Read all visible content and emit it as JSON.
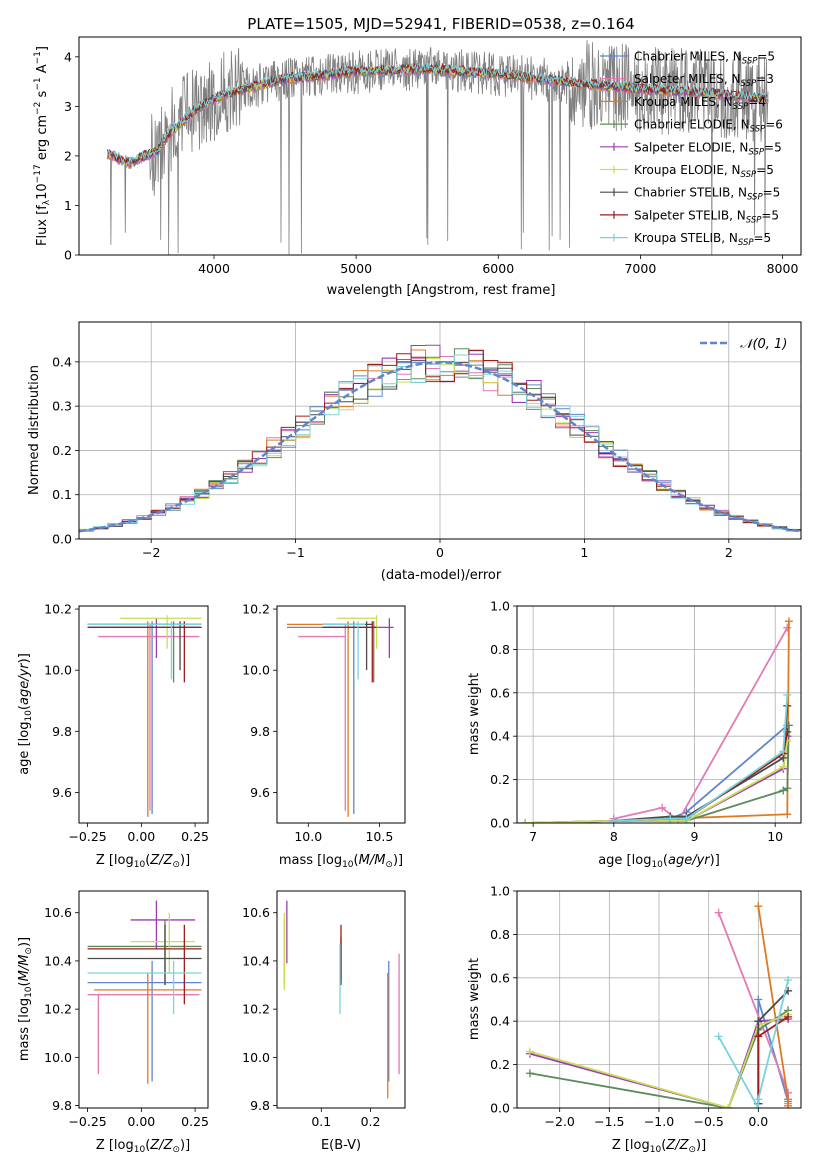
{
  "title": "PLATE=1505, MJD=52941, FIBERID=0538, z=0.164",
  "colors": {
    "Chabrier MILES": "#5f86cc",
    "Salpeter MILES": "#e379b5",
    "Kroupa MILES": "#e07a22",
    "Chabrier ELODIE": "#5b8a5b",
    "Salpeter ELODIE": "#9a3fb4",
    "Kroupa ELODIE": "#c9dd55",
    "Chabrier STELIB": "#4a4a4a",
    "Salpeter STELIB": "#a01c1c",
    "Kroupa STELIB": "#79d3dc",
    "data": "#808080",
    "gaussian": "#5f86cc"
  },
  "legend_spectrum": [
    {
      "key": "Chabrier MILES",
      "text": "Chabrier MILES, N",
      "sub": "SSP",
      "tail": "=5"
    },
    {
      "key": "Salpeter MILES",
      "text": "Salpeter MILES, N",
      "sub": "SSP",
      "tail": "=3"
    },
    {
      "key": "Kroupa MILES",
      "text": "Kroupa MILES, N",
      "sub": "SSP",
      "tail": "=4"
    },
    {
      "key": "Chabrier ELODIE",
      "text": "Chabrier ELODIE, N",
      "sub": "SSP",
      "tail": "=6"
    },
    {
      "key": "Salpeter ELODIE",
      "text": "Salpeter ELODIE, N",
      "sub": "SSP",
      "tail": "=5"
    },
    {
      "key": "Kroupa ELODIE",
      "text": "Kroupa ELODIE, N",
      "sub": "SSP",
      "tail": "=5"
    },
    {
      "key": "Chabrier STELIB",
      "text": "Chabrier STELIB, N",
      "sub": "SSP",
      "tail": "=5"
    },
    {
      "key": "Salpeter STELIB",
      "text": "Salpeter STELIB, N",
      "sub": "SSP",
      "tail": "=5"
    },
    {
      "key": "Kroupa STELIB",
      "text": "Kroupa STELIB, N",
      "sub": "SSP",
      "tail": "=5"
    }
  ],
  "legend_hist": "𝒩(0, 1)",
  "chart_data": [
    {
      "id": "spectrum",
      "type": "line",
      "xlabel": "wavelength [Angstrom, rest frame]",
      "ylabel": "Flux [f_λ10^-17 erg cm^-2 s^-1 A^-1]",
      "xlim": [
        3050,
        8130
      ],
      "ylim": [
        0,
        4.4
      ],
      "xticks": [
        4000,
        5000,
        6000,
        7000,
        8000
      ],
      "yticks": [
        0,
        1,
        2,
        3,
        4
      ],
      "model_continuum": {
        "x": [
          3250,
          3400,
          3600,
          3700,
          3800,
          3900,
          4000,
          4200,
          4500,
          5000,
          5500,
          6000,
          6300,
          6600,
          7000,
          7500,
          7900
        ],
        "y": [
          2.05,
          1.85,
          2.1,
          2.5,
          2.75,
          3.0,
          3.15,
          3.35,
          3.55,
          3.7,
          3.75,
          3.65,
          3.55,
          3.45,
          3.35,
          3.25,
          3.15
        ]
      }
    },
    {
      "id": "residuals",
      "type": "histogram",
      "xlabel": "(data-model)/error",
      "ylabel": "Normed distribution",
      "xlim": [
        -2.5,
        2.5
      ],
      "ylim": [
        0,
        0.49
      ],
      "xticks": [
        -2,
        -1,
        0,
        1,
        2
      ],
      "yticks": [
        0,
        0.1,
        0.2,
        0.3,
        0.4
      ],
      "grid": true,
      "legend_placement": "upper right",
      "gaussian": {
        "mu": 0,
        "sigma": 1
      }
    },
    {
      "id": "age_vs_Z",
      "type": "scatter",
      "xlabel": "Z [log10(Z/Z⊙)]",
      "ylabel": "age [log10(age/yr)]",
      "xlim": [
        -0.29,
        0.31
      ],
      "ylim": [
        9.5,
        10.21
      ],
      "xticks": [
        -0.25,
        0,
        0.25
      ],
      "yticks": [
        9.6,
        9.8,
        10.0,
        10.2
      ],
      "points": [
        {
          "key": "Chabrier MILES",
          "x": 0.05,
          "y": 10.14,
          "xlo": -0.25,
          "xhi": 0.28,
          "ylo": 9.53,
          "yhi": 10.16
        },
        {
          "key": "Salpeter MILES",
          "x": 0.04,
          "y": 10.11,
          "xlo": -0.2,
          "xhi": 0.27,
          "ylo": 9.54,
          "yhi": 10.15
        },
        {
          "key": "Kroupa MILES",
          "x": 0.03,
          "y": 10.15,
          "xlo": -0.25,
          "xhi": 0.28,
          "ylo": 9.52,
          "yhi": 10.16
        },
        {
          "key": "Chabrier ELODIE",
          "x": 0.15,
          "y": 10.14,
          "xlo": -0.25,
          "xhi": 0.28,
          "ylo": 9.96,
          "yhi": 10.16
        },
        {
          "key": "Salpeter ELODIE",
          "x": 0.07,
          "y": 10.14,
          "xlo": -0.25,
          "xhi": 0.28,
          "ylo": 10.04,
          "yhi": 10.17
        },
        {
          "key": "Kroupa ELODIE",
          "x": 0.12,
          "y": 10.17,
          "xlo": -0.1,
          "xhi": 0.28,
          "ylo": 10.07,
          "yhi": 10.18
        },
        {
          "key": "Chabrier STELIB",
          "x": 0.18,
          "y": 10.15,
          "xlo": -0.25,
          "xhi": 0.28,
          "ylo": 10.0,
          "yhi": 10.16
        },
        {
          "key": "Salpeter STELIB",
          "x": 0.2,
          "y": 10.14,
          "xlo": -0.25,
          "xhi": 0.28,
          "ylo": 9.96,
          "yhi": 10.16
        },
        {
          "key": "Kroupa STELIB",
          "x": 0.14,
          "y": 10.15,
          "xlo": -0.25,
          "xhi": 0.28,
          "ylo": 9.97,
          "yhi": 10.16
        }
      ]
    },
    {
      "id": "age_vs_mass",
      "type": "scatter",
      "xlabel": "mass [log10(M/M⊙)]",
      "ylabel": "",
      "xlim": [
        9.78,
        10.68
      ],
      "ylim": [
        9.5,
        10.21
      ],
      "xticks": [
        10.0,
        10.5
      ],
      "yticks": [
        9.6,
        9.8,
        10.0,
        10.2
      ],
      "points": [
        {
          "key": "Chabrier MILES",
          "x": 10.32,
          "y": 10.14,
          "xlo": 9.85,
          "xhi": 10.4,
          "ylo": 9.53,
          "yhi": 10.16
        },
        {
          "key": "Salpeter MILES",
          "x": 10.26,
          "y": 10.11,
          "xlo": 9.93,
          "xhi": 10.26,
          "ylo": 9.54,
          "yhi": 10.15
        },
        {
          "key": "Kroupa MILES",
          "x": 10.28,
          "y": 10.15,
          "xlo": 9.85,
          "xhi": 10.28,
          "ylo": 9.52,
          "yhi": 10.16
        },
        {
          "key": "Chabrier ELODIE",
          "x": 10.46,
          "y": 10.14,
          "xlo": 10.1,
          "xhi": 10.46,
          "ylo": 9.96,
          "yhi": 10.16
        },
        {
          "key": "Salpeter ELODIE",
          "x": 10.57,
          "y": 10.14,
          "xlo": 10.15,
          "xhi": 10.6,
          "ylo": 10.04,
          "yhi": 10.17
        },
        {
          "key": "Kroupa ELODIE",
          "x": 10.48,
          "y": 10.17,
          "xlo": 10.2,
          "xhi": 10.48,
          "ylo": 10.07,
          "yhi": 10.18
        },
        {
          "key": "Chabrier STELIB",
          "x": 10.41,
          "y": 10.15,
          "xlo": 10.1,
          "xhi": 10.45,
          "ylo": 10.0,
          "yhi": 10.16
        },
        {
          "key": "Salpeter STELIB",
          "x": 10.45,
          "y": 10.14,
          "xlo": 10.1,
          "xhi": 10.48,
          "ylo": 9.96,
          "yhi": 10.16
        },
        {
          "key": "Kroupa STELIB",
          "x": 10.35,
          "y": 10.15,
          "xlo": 10.1,
          "xhi": 10.4,
          "ylo": 9.97,
          "yhi": 10.16
        }
      ]
    },
    {
      "id": "weight_vs_age",
      "type": "line",
      "xlabel": "age [log10(age/yr)]",
      "ylabel": "mass weight",
      "xlim": [
        6.8,
        10.32
      ],
      "ylim": [
        0,
        1.0
      ],
      "xticks": [
        7,
        8,
        9,
        10
      ],
      "yticks": [
        0.0,
        0.2,
        0.4,
        0.6,
        0.8,
        1.0
      ],
      "grid": true,
      "series": [
        {
          "key": "Chabrier MILES",
          "x": [
            8.0,
            8.7,
            8.9,
            10.15
          ],
          "y": [
            0.01,
            0.02,
            0.05,
            0.45
          ]
        },
        {
          "key": "Salpeter MILES",
          "x": [
            8.0,
            8.6,
            8.8,
            10.15
          ],
          "y": [
            0.02,
            0.07,
            0.01,
            0.9
          ]
        },
        {
          "key": "Kroupa MILES",
          "x": [
            8.0,
            8.7,
            10.15,
            10.17
          ],
          "y": [
            0.01,
            0.02,
            0.04,
            0.93
          ]
        },
        {
          "key": "Chabrier ELODIE",
          "x": [
            6.9,
            8.0,
            8.9,
            10.1,
            10.15,
            10.17
          ],
          "y": [
            0.0,
            0.01,
            0.01,
            0.15,
            0.16,
            0.45
          ]
        },
        {
          "key": "Salpeter ELODIE",
          "x": [
            6.9,
            8.0,
            8.9,
            10.1,
            10.15
          ],
          "y": [
            0.0,
            0.01,
            0.01,
            0.25,
            0.4
          ]
        },
        {
          "key": "Kroupa ELODIE",
          "x": [
            6.9,
            8.0,
            8.9,
            10.1,
            10.15
          ],
          "y": [
            0.0,
            0.01,
            0.01,
            0.26,
            0.38
          ]
        },
        {
          "key": "Chabrier STELIB",
          "x": [
            8.0,
            8.7,
            8.9,
            10.1,
            10.15
          ],
          "y": [
            0.01,
            0.03,
            0.03,
            0.3,
            0.54
          ]
        },
        {
          "key": "Salpeter STELIB",
          "x": [
            8.0,
            8.7,
            8.9,
            10.1,
            10.15
          ],
          "y": [
            0.01,
            0.02,
            0.02,
            0.32,
            0.42
          ]
        },
        {
          "key": "Kroupa STELIB",
          "x": [
            8.0,
            8.7,
            8.9,
            10.1,
            10.15
          ],
          "y": [
            0.01,
            0.02,
            0.02,
            0.33,
            0.59
          ]
        }
      ]
    },
    {
      "id": "mass_vs_Z",
      "type": "scatter",
      "xlabel": "Z [log10(Z/Z⊙)]",
      "ylabel": "mass [log10(M/M⊙)]",
      "xlim": [
        -0.29,
        0.31
      ],
      "ylim": [
        9.79,
        10.69
      ],
      "xticks": [
        -0.25,
        0,
        0.25
      ],
      "yticks": [
        9.8,
        10.0,
        10.2,
        10.4,
        10.6
      ],
      "points": [
        {
          "key": "Chabrier MILES",
          "x": 0.05,
          "y": 10.31,
          "xlo": -0.25,
          "xhi": 0.28,
          "ylo": 9.9,
          "yhi": 10.4
        },
        {
          "key": "Salpeter MILES",
          "x": -0.2,
          "y": 10.26,
          "xlo": -0.25,
          "xhi": 0.27,
          "ylo": 9.93,
          "yhi": 10.26
        },
        {
          "key": "Kroupa MILES",
          "x": 0.03,
          "y": 10.28,
          "xlo": -0.22,
          "xhi": 0.28,
          "ylo": 9.89,
          "yhi": 10.35
        },
        {
          "key": "Chabrier ELODIE",
          "x": 0.11,
          "y": 10.46,
          "xlo": -0.25,
          "xhi": 0.28,
          "ylo": 10.3,
          "yhi": 10.57
        },
        {
          "key": "Salpeter ELODIE",
          "x": 0.07,
          "y": 10.57,
          "xlo": -0.05,
          "xhi": 0.25,
          "ylo": 10.45,
          "yhi": 10.65
        },
        {
          "key": "Kroupa ELODIE",
          "x": 0.13,
          "y": 10.48,
          "xlo": -0.05,
          "xhi": 0.25,
          "ylo": 10.35,
          "yhi": 10.6
        },
        {
          "key": "Chabrier STELIB",
          "x": 0.11,
          "y": 10.41,
          "xlo": -0.25,
          "xhi": 0.28,
          "ylo": 10.3,
          "yhi": 10.55
        },
        {
          "key": "Salpeter STELIB",
          "x": 0.2,
          "y": 10.45,
          "xlo": -0.25,
          "xhi": 0.28,
          "ylo": 10.22,
          "yhi": 10.55
        },
        {
          "key": "Kroupa STELIB",
          "x": 0.15,
          "y": 10.35,
          "xlo": -0.25,
          "xhi": 0.28,
          "ylo": 10.18,
          "yhi": 10.4
        }
      ]
    },
    {
      "id": "mass_vs_ebv",
      "type": "scatter",
      "xlabel": "E(B-V)",
      "ylabel": "",
      "xlim": [
        0.01,
        0.27
      ],
      "ylim": [
        9.79,
        10.69
      ],
      "xticks": [
        0.1,
        0.2
      ],
      "yticks": [
        9.8,
        10.0,
        10.2,
        10.4,
        10.6
      ],
      "points": [
        {
          "key": "Chabrier MILES",
          "x": 0.237,
          "y": 10.31,
          "ylo": 9.9,
          "yhi": 10.4
        },
        {
          "key": "Salpeter MILES",
          "x": 0.258,
          "y": 10.26,
          "ylo": 9.93,
          "yhi": 10.43
        },
        {
          "key": "Kroupa MILES",
          "x": 0.235,
          "y": 10.28,
          "ylo": 9.83,
          "yhi": 10.35
        },
        {
          "key": "Chabrier ELODIE",
          "x": 0.025,
          "y": 10.46,
          "ylo": 10.3,
          "yhi": 10.57
        },
        {
          "key": "Salpeter ELODIE",
          "x": 0.03,
          "y": 10.57,
          "ylo": 10.39,
          "yhi": 10.65
        },
        {
          "key": "Kroupa ELODIE",
          "x": 0.025,
          "y": 10.48,
          "ylo": 10.28,
          "yhi": 10.6
        },
        {
          "key": "Chabrier STELIB",
          "x": 0.14,
          "y": 10.41,
          "ylo": 10.3,
          "yhi": 10.5
        },
        {
          "key": "Salpeter STELIB",
          "x": 0.14,
          "y": 10.45,
          "ylo": 10.32,
          "yhi": 10.55
        },
        {
          "key": "Kroupa STELIB",
          "x": 0.138,
          "y": 10.35,
          "ylo": 10.18,
          "yhi": 10.47
        }
      ]
    },
    {
      "id": "weight_vs_Z",
      "type": "line",
      "xlabel": "Z [log10(Z/Z⊙)]",
      "ylabel": "mass weight",
      "xlim": [
        -2.43,
        0.43
      ],
      "ylim": [
        0,
        1.0
      ],
      "xticks": [
        -2.0,
        -1.5,
        -1.0,
        -0.5,
        0.0
      ],
      "yticks": [
        0.0,
        0.2,
        0.4,
        0.6,
        0.8,
        1.0
      ],
      "grid": true,
      "series": [
        {
          "key": "Chabrier MILES",
          "x": [
            0.0,
            0.0,
            0.3
          ],
          "y": [
            0.02,
            0.5,
            0.03
          ]
        },
        {
          "key": "Salpeter MILES",
          "x": [
            -0.4,
            0.3,
            0.3
          ],
          "y": [
            0.9,
            0.07,
            0.02
          ]
        },
        {
          "key": "Kroupa MILES",
          "x": [
            0.0,
            0.3,
            0.3
          ],
          "y": [
            0.93,
            0.04,
            0.01
          ]
        },
        {
          "key": "Chabrier ELODIE",
          "x": [
            -2.3,
            -0.3,
            0.0,
            0.3
          ],
          "y": [
            0.16,
            0.0,
            0.36,
            0.45
          ]
        },
        {
          "key": "Salpeter ELODIE",
          "x": [
            -2.3,
            -0.3,
            0.0,
            0.3
          ],
          "y": [
            0.25,
            0.0,
            0.4,
            0.41
          ]
        },
        {
          "key": "Kroupa ELODIE",
          "x": [
            -2.3,
            -0.3,
            0.0,
            0.3
          ],
          "y": [
            0.26,
            0.0,
            0.38,
            0.43
          ]
        },
        {
          "key": "Chabrier STELIB",
          "x": [
            0.0,
            0.0,
            0.3
          ],
          "y": [
            0.02,
            0.4,
            0.54
          ]
        },
        {
          "key": "Salpeter STELIB",
          "x": [
            0.0,
            0.0,
            0.3
          ],
          "y": [
            0.02,
            0.33,
            0.42
          ]
        },
        {
          "key": "Kroupa STELIB",
          "x": [
            -0.4,
            0.0,
            0.0,
            0.3
          ],
          "y": [
            0.33,
            0.0,
            0.04,
            0.59
          ]
        }
      ]
    }
  ]
}
